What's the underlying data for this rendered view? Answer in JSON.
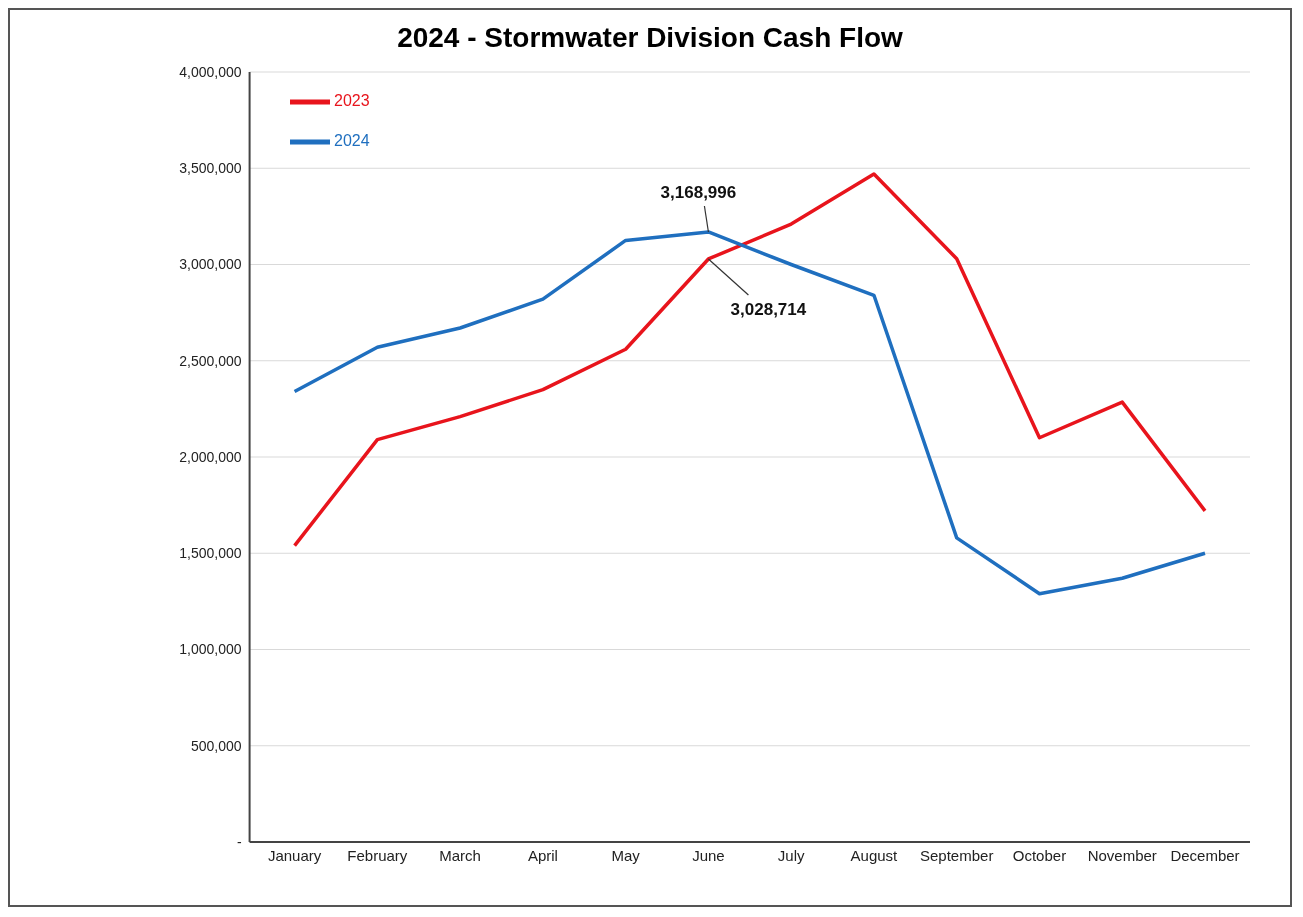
{
  "chart_data": {
    "type": "line",
    "title": "2024 - Stormwater Division Cash Flow",
    "categories": [
      "January",
      "February",
      "March",
      "April",
      "May",
      "June",
      "July",
      "August",
      "September",
      "October",
      "November",
      "December"
    ],
    "series": [
      {
        "name": "2023",
        "color": "#e8141c",
        "values": [
          1540000,
          2090000,
          2210000,
          2350000,
          2560000,
          3028714,
          3210000,
          3470000,
          3030000,
          2100000,
          2285000,
          1720000
        ]
      },
      {
        "name": "2024",
        "color": "#1f6fbf",
        "values": [
          2340000,
          2570000,
          2670000,
          2820000,
          3125000,
          3168996,
          3000000,
          2840000,
          1580000,
          1290000,
          1370000,
          1500000
        ]
      }
    ],
    "ylim": [
      0,
      4000000
    ],
    "yticks": [
      {
        "value": 0,
        "label": "-"
      },
      {
        "value": 500000,
        "label": "500,000"
      },
      {
        "value": 1000000,
        "label": "1,000,000"
      },
      {
        "value": 1500000,
        "label": "1,500,000"
      },
      {
        "value": 2000000,
        "label": "2,000,000"
      },
      {
        "value": 2500000,
        "label": "2,500,000"
      },
      {
        "value": 3000000,
        "label": "3,000,000"
      },
      {
        "value": 3500000,
        "label": "3,500,000"
      },
      {
        "value": 4000000,
        "label": "4,000,000"
      }
    ],
    "grid": "y",
    "legend": "top left",
    "marker": "none",
    "line_style": "solid",
    "annotations": [
      {
        "text": "3,168,996",
        "x": "June",
        "y": 3168996
      },
      {
        "text": "3,028,714",
        "x": "June",
        "y": 3028714
      }
    ]
  }
}
